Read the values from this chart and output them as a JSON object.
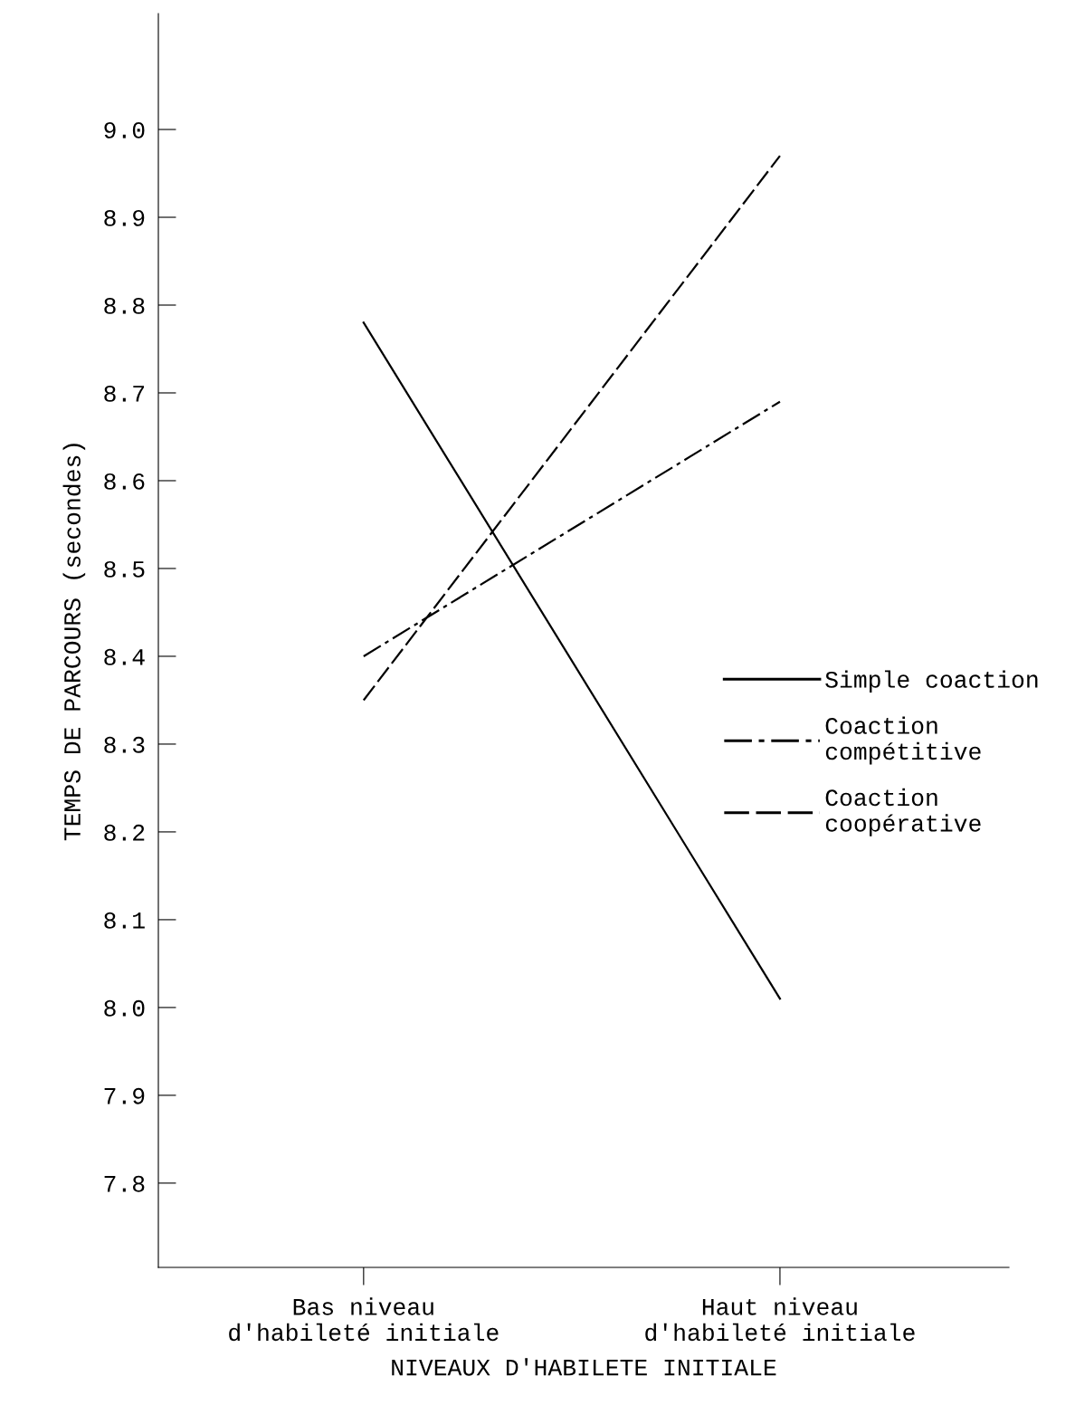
{
  "chart_data": {
    "type": "line",
    "xlabel": "NIVEAUX D'HABILETE INITIALE",
    "ylabel": "TEMPS DE PARCOURS (secondes)",
    "categories": [
      "Bas niveau\nd'habileté initiale",
      "Haut niveau\nd'habileté initiale"
    ],
    "ylim": [
      7.704,
      9.132
    ],
    "yticks": [
      7.8,
      7.9,
      {
        "value": 8,
        "label": "8.0"
      },
      8.1,
      8.2,
      8.3,
      8.4,
      8.5,
      8.6,
      8.7,
      8.8,
      8.9,
      {
        "value": 9,
        "label": "9.0"
      }
    ],
    "grid": false,
    "legend": "right",
    "marker": "none",
    "series": [
      {
        "name": "Simple coaction",
        "color": "#000000",
        "line_style": "solid",
        "values": [
          8.78,
          8.01
        ]
      },
      {
        "name": "Coaction\ncompétitive",
        "color": "#000000",
        "line_style": "dashdot",
        "values": [
          8.4,
          8.69
        ]
      },
      {
        "name": "Coaction\ncoopérative",
        "color": "#000000",
        "line_style": "dashed",
        "values": [
          8.35,
          8.97
        ]
      }
    ]
  }
}
